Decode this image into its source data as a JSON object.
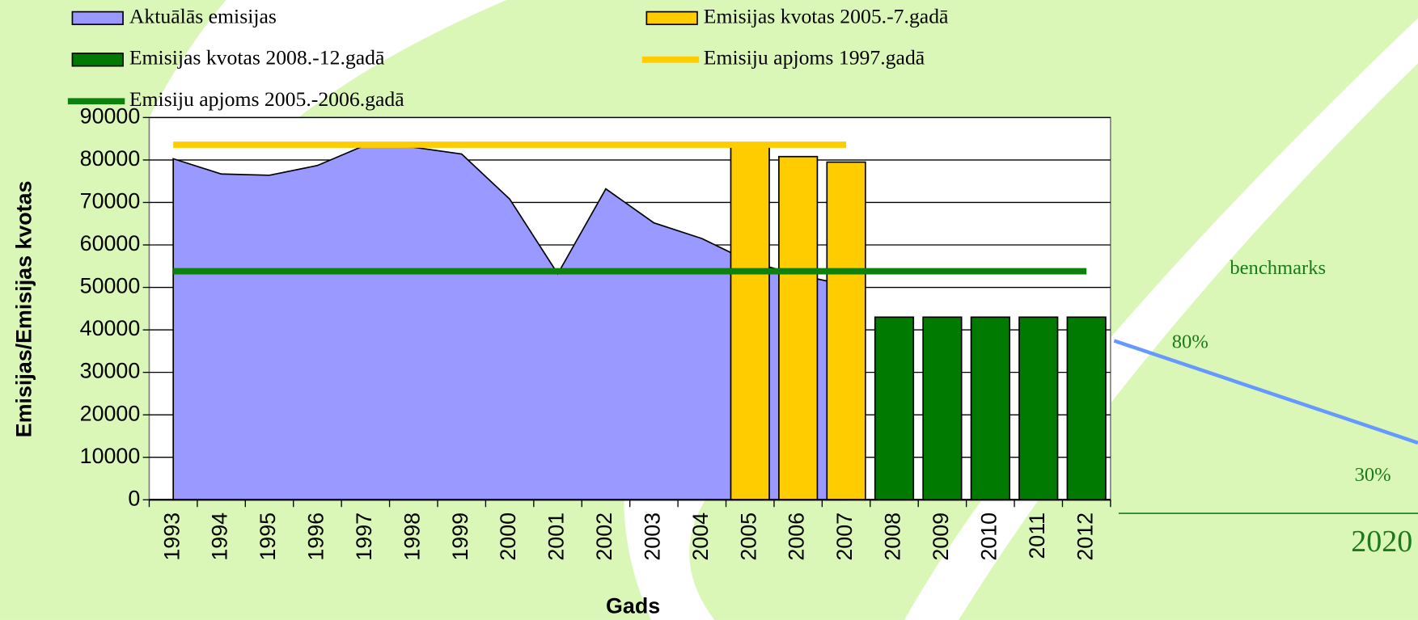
{
  "chart_data": {
    "type": "combo",
    "xlabel": "Gads",
    "ylabel": "Emisijas/Emisijas kvotas",
    "categories": [
      "1993",
      "1994",
      "1995",
      "1996",
      "1997",
      "1998",
      "1999",
      "2000",
      "2001",
      "2002",
      "2003",
      "2004",
      "2005",
      "2006",
      "2007",
      "2008",
      "2009",
      "2010",
      "2011",
      "2012"
    ],
    "ylim": [
      0,
      90000
    ],
    "yticks": [
      0,
      10000,
      20000,
      30000,
      40000,
      50000,
      60000,
      70000,
      80000,
      90000
    ],
    "grid": true,
    "series": [
      {
        "name": "Aktuālās emisijas",
        "type": "area",
        "color": "#9999ff",
        "values": [
          80300,
          76700,
          76400,
          78700,
          83500,
          83000,
          81400,
          70800,
          53200,
          73200,
          65200,
          61500,
          56000,
          53000,
          50500,
          null,
          null,
          null,
          null,
          null
        ]
      },
      {
        "name": "Emisijas kvotas 2005.-7.gadā",
        "type": "bar",
        "color": "#ffcc00",
        "values": [
          null,
          null,
          null,
          null,
          null,
          null,
          null,
          null,
          null,
          null,
          null,
          null,
          83200,
          80800,
          79500,
          null,
          null,
          null,
          null,
          null
        ]
      },
      {
        "name": "Emisijas kvotas 2008.-12.gadā",
        "type": "bar",
        "color": "#007a00",
        "values": [
          null,
          null,
          null,
          null,
          null,
          null,
          null,
          null,
          null,
          null,
          null,
          null,
          null,
          null,
          null,
          43000,
          43000,
          43000,
          43000,
          43000
        ]
      },
      {
        "name": "Emisiju apjoms 1997.gadā",
        "type": "line",
        "color": "#ffcc00",
        "values": [
          83600,
          83600,
          83600,
          83600,
          83600,
          83600,
          83600,
          83600,
          83600,
          83600,
          83600,
          83600,
          83600,
          83600,
          83600,
          null,
          null,
          null,
          null,
          null
        ]
      },
      {
        "name": "Emisiju apjoms 2005.-2006.gadā",
        "type": "line",
        "color": "#0d800d",
        "values": [
          53800,
          53800,
          53800,
          53800,
          53800,
          53800,
          53800,
          53800,
          53800,
          53800,
          53800,
          53800,
          53800,
          53800,
          53800,
          53800,
          53800,
          53800,
          53800,
          53800
        ]
      }
    ]
  },
  "slide": {
    "benchmark": "benchmarks",
    "pct_high": "80%",
    "pct_low": "30%",
    "year": "2020"
  }
}
